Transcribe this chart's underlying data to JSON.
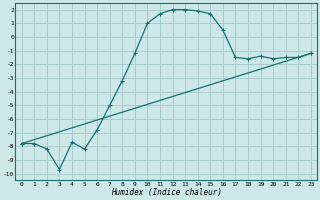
{
  "xlabel": "Humidex (Indice chaleur)",
  "background_color": "#cce8e8",
  "grid_color": "#aacccc",
  "line_color": "#1a7070",
  "xlim": [
    -0.5,
    23.5
  ],
  "ylim": [
    -10.5,
    2.5
  ],
  "xticks": [
    0,
    1,
    2,
    3,
    4,
    5,
    6,
    7,
    8,
    9,
    10,
    11,
    12,
    13,
    14,
    15,
    16,
    17,
    18,
    19,
    20,
    21,
    22,
    23
  ],
  "yticks": [
    2,
    1,
    0,
    -1,
    -2,
    -3,
    -4,
    -5,
    -6,
    -7,
    -8,
    -9,
    -10
  ],
  "curve1_x": [
    0,
    1,
    2,
    3,
    4,
    5,
    6,
    7,
    8,
    9,
    10,
    11,
    12,
    13,
    14,
    15,
    16,
    17,
    18,
    19,
    20,
    21,
    22,
    23
  ],
  "curve1_y": [
    -7.8,
    -7.8,
    -8.2,
    -9.7,
    -7.7,
    -8.2,
    -6.8,
    -5.0,
    -3.2,
    -1.2,
    1.0,
    1.7,
    2.0,
    2.0,
    1.9,
    1.7,
    0.5,
    -1.5,
    -1.6,
    -1.4,
    -1.6,
    -1.5,
    -1.5,
    -1.2
  ],
  "curve2_x": [
    0,
    23
  ],
  "curve2_y": [
    -7.8,
    -1.2
  ]
}
